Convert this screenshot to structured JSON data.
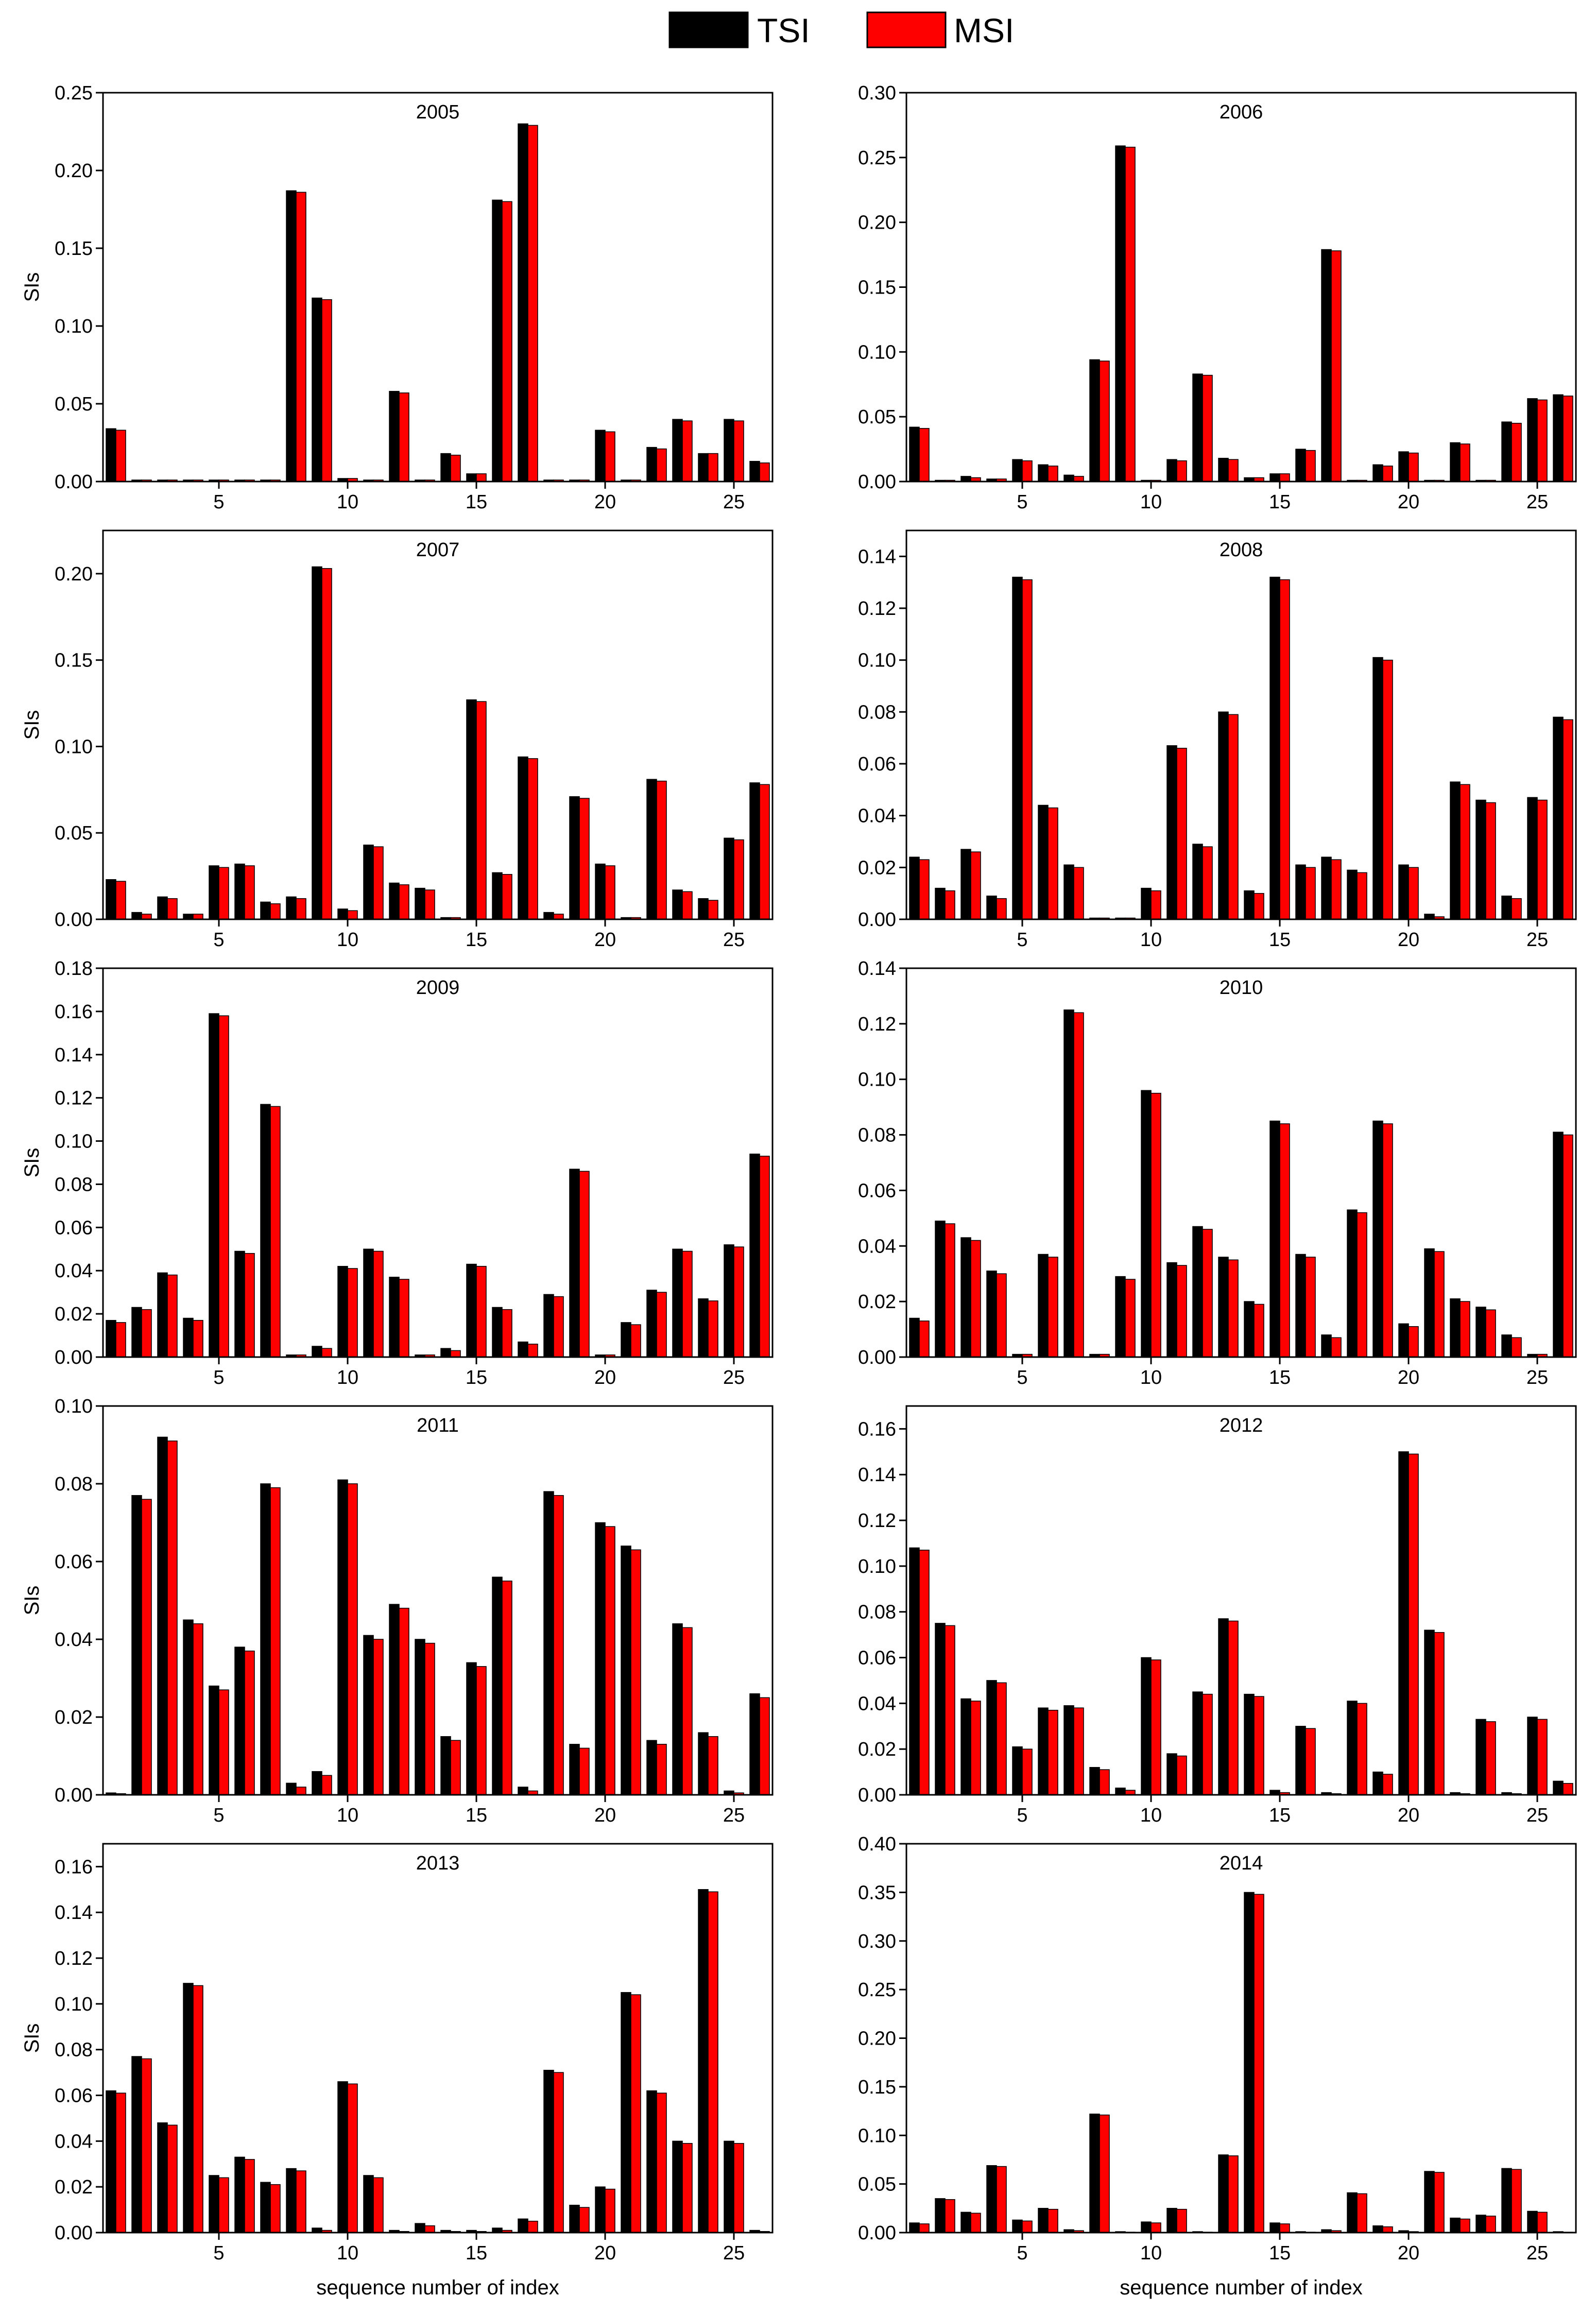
{
  "legend": [
    {
      "label": "TSI",
      "color": "#000000"
    },
    {
      "label": "MSI",
      "color": "#ff0000"
    }
  ],
  "x_tick_labels": [
    "5",
    "10",
    "15",
    "20",
    "25"
  ],
  "chart_data": [
    {
      "type": "bar",
      "title": "2005",
      "ylabel": "SIs",
      "xlabel": "",
      "ylim": [
        0,
        0.25
      ],
      "yticks": [
        "0.00",
        "0.05",
        "0.10",
        "0.15",
        "0.20",
        "0.25"
      ],
      "x": [
        1,
        2,
        3,
        4,
        5,
        6,
        7,
        8,
        9,
        10,
        11,
        12,
        13,
        14,
        15,
        16,
        17,
        18,
        19,
        20,
        21,
        22,
        23,
        24,
        25,
        26
      ],
      "series": [
        {
          "name": "TSI",
          "values": [
            0.034,
            0.001,
            0.001,
            0.001,
            0.001,
            0.001,
            0.001,
            0.187,
            0.118,
            0.002,
            0.001,
            0.058,
            0.001,
            0.018,
            0.005,
            0.181,
            0.23,
            0.001,
            0.001,
            0.033,
            0.001,
            0.022,
            0.04,
            0.018,
            0.04,
            0.013
          ]
        },
        {
          "name": "MSI",
          "values": [
            0.033,
            0.001,
            0.001,
            0.001,
            0.001,
            0.001,
            0.001,
            0.186,
            0.117,
            0.002,
            0.001,
            0.057,
            0.001,
            0.017,
            0.005,
            0.18,
            0.229,
            0.001,
            0.001,
            0.032,
            0.001,
            0.021,
            0.039,
            0.018,
            0.039,
            0.012
          ]
        }
      ]
    },
    {
      "type": "bar",
      "title": "2006",
      "ylabel": "",
      "xlabel": "",
      "ylim": [
        0,
        0.3
      ],
      "yticks": [
        "0.00",
        "0.05",
        "0.10",
        "0.15",
        "0.20",
        "0.25",
        "0.30"
      ],
      "x": [
        1,
        2,
        3,
        4,
        5,
        6,
        7,
        8,
        9,
        10,
        11,
        12,
        13,
        14,
        15,
        16,
        17,
        18,
        19,
        20,
        21,
        22,
        23,
        24,
        25,
        26
      ],
      "series": [
        {
          "name": "TSI",
          "values": [
            0.042,
            0.001,
            0.004,
            0.002,
            0.017,
            0.013,
            0.005,
            0.094,
            0.259,
            0.001,
            0.017,
            0.083,
            0.018,
            0.003,
            0.006,
            0.025,
            0.179,
            0.001,
            0.013,
            0.023,
            0.001,
            0.03,
            0.001,
            0.046,
            0.064,
            0.067
          ]
        },
        {
          "name": "MSI",
          "values": [
            0.041,
            0.001,
            0.003,
            0.002,
            0.016,
            0.012,
            0.004,
            0.093,
            0.258,
            0.001,
            0.016,
            0.082,
            0.017,
            0.003,
            0.006,
            0.024,
            0.178,
            0.001,
            0.012,
            0.022,
            0.001,
            0.029,
            0.001,
            0.045,
            0.063,
            0.066
          ]
        }
      ]
    },
    {
      "type": "bar",
      "title": "2007",
      "ylabel": "SIs",
      "xlabel": "",
      "ylim": [
        0,
        0.225
      ],
      "yticks": [
        "0.00",
        "0.05",
        "0.10",
        "0.15",
        "0.20"
      ],
      "x": [
        1,
        2,
        3,
        4,
        5,
        6,
        7,
        8,
        9,
        10,
        11,
        12,
        13,
        14,
        15,
        16,
        17,
        18,
        19,
        20,
        21,
        22,
        23,
        24,
        25,
        26
      ],
      "series": [
        {
          "name": "TSI",
          "values": [
            0.023,
            0.004,
            0.013,
            0.003,
            0.031,
            0.032,
            0.01,
            0.013,
            0.204,
            0.006,
            0.043,
            0.021,
            0.018,
            0.001,
            0.127,
            0.027,
            0.094,
            0.004,
            0.071,
            0.032,
            0.001,
            0.081,
            0.017,
            0.012,
            0.047,
            0.079
          ]
        },
        {
          "name": "MSI",
          "values": [
            0.022,
            0.003,
            0.012,
            0.003,
            0.03,
            0.031,
            0.009,
            0.012,
            0.203,
            0.005,
            0.042,
            0.02,
            0.017,
            0.001,
            0.126,
            0.026,
            0.093,
            0.003,
            0.07,
            0.031,
            0.001,
            0.08,
            0.016,
            0.011,
            0.046,
            0.078
          ]
        }
      ]
    },
    {
      "type": "bar",
      "title": "2008",
      "ylabel": "",
      "xlabel": "",
      "ylim": [
        0,
        0.15
      ],
      "yticks": [
        "0.00",
        "0.02",
        "0.04",
        "0.06",
        "0.08",
        "0.10",
        "0.12",
        "0.14"
      ],
      "x": [
        1,
        2,
        3,
        4,
        5,
        6,
        7,
        8,
        9,
        10,
        11,
        12,
        13,
        14,
        15,
        16,
        17,
        18,
        19,
        20,
        21,
        22,
        23,
        24,
        25,
        26
      ],
      "series": [
        {
          "name": "TSI",
          "values": [
            0.024,
            0.012,
            0.027,
            0.009,
            0.132,
            0.044,
            0.021,
            0.0005,
            0.0005,
            0.012,
            0.067,
            0.029,
            0.08,
            0.011,
            0.132,
            0.021,
            0.024,
            0.019,
            0.101,
            0.021,
            0.002,
            0.053,
            0.046,
            0.009,
            0.047,
            0.078
          ]
        },
        {
          "name": "MSI",
          "values": [
            0.023,
            0.011,
            0.026,
            0.008,
            0.131,
            0.043,
            0.02,
            0.0005,
            0.0005,
            0.011,
            0.066,
            0.028,
            0.079,
            0.01,
            0.131,
            0.02,
            0.023,
            0.018,
            0.1,
            0.02,
            0.001,
            0.052,
            0.045,
            0.008,
            0.046,
            0.077
          ]
        }
      ]
    },
    {
      "type": "bar",
      "title": "2009",
      "ylabel": "SIs",
      "xlabel": "",
      "ylim": [
        0,
        0.18
      ],
      "yticks": [
        "0.00",
        "0.02",
        "0.04",
        "0.06",
        "0.08",
        "0.10",
        "0.12",
        "0.14",
        "0.16",
        "0.18"
      ],
      "x": [
        1,
        2,
        3,
        4,
        5,
        6,
        7,
        8,
        9,
        10,
        11,
        12,
        13,
        14,
        15,
        16,
        17,
        18,
        19,
        20,
        21,
        22,
        23,
        24,
        25,
        26
      ],
      "series": [
        {
          "name": "TSI",
          "values": [
            0.017,
            0.023,
            0.039,
            0.018,
            0.159,
            0.049,
            0.117,
            0.001,
            0.005,
            0.042,
            0.05,
            0.037,
            0.001,
            0.004,
            0.043,
            0.023,
            0.007,
            0.029,
            0.087,
            0.001,
            0.016,
            0.031,
            0.05,
            0.027,
            0.052,
            0.094
          ]
        },
        {
          "name": "MSI",
          "values": [
            0.016,
            0.022,
            0.038,
            0.017,
            0.158,
            0.048,
            0.116,
            0.001,
            0.004,
            0.041,
            0.049,
            0.036,
            0.001,
            0.003,
            0.042,
            0.022,
            0.006,
            0.028,
            0.086,
            0.001,
            0.015,
            0.03,
            0.049,
            0.026,
            0.051,
            0.093
          ]
        }
      ]
    },
    {
      "type": "bar",
      "title": "2010",
      "ylabel": "",
      "xlabel": "",
      "ylim": [
        0,
        0.14
      ],
      "yticks": [
        "0.00",
        "0.02",
        "0.04",
        "0.06",
        "0.08",
        "0.10",
        "0.12",
        "0.14"
      ],
      "x": [
        1,
        2,
        3,
        4,
        5,
        6,
        7,
        8,
        9,
        10,
        11,
        12,
        13,
        14,
        15,
        16,
        17,
        18,
        19,
        20,
        21,
        22,
        23,
        24,
        25,
        26
      ],
      "series": [
        {
          "name": "TSI",
          "values": [
            0.014,
            0.049,
            0.043,
            0.031,
            0.001,
            0.037,
            0.125,
            0.001,
            0.029,
            0.096,
            0.034,
            0.047,
            0.036,
            0.02,
            0.085,
            0.037,
            0.008,
            0.053,
            0.085,
            0.012,
            0.039,
            0.021,
            0.018,
            0.008,
            0.001,
            0.081
          ]
        },
        {
          "name": "MSI",
          "values": [
            0.013,
            0.048,
            0.042,
            0.03,
            0.001,
            0.036,
            0.124,
            0.001,
            0.028,
            0.095,
            0.033,
            0.046,
            0.035,
            0.019,
            0.084,
            0.036,
            0.007,
            0.052,
            0.084,
            0.011,
            0.038,
            0.02,
            0.017,
            0.007,
            0.001,
            0.08
          ]
        }
      ]
    },
    {
      "type": "bar",
      "title": "2011",
      "ylabel": "SIs",
      "xlabel": "",
      "ylim": [
        0,
        0.1
      ],
      "yticks": [
        "0.00",
        "0.02",
        "0.04",
        "0.06",
        "0.08",
        "0.10"
      ],
      "x": [
        1,
        2,
        3,
        4,
        5,
        6,
        7,
        8,
        9,
        10,
        11,
        12,
        13,
        14,
        15,
        16,
        17,
        18,
        19,
        20,
        21,
        22,
        23,
        24,
        25,
        26
      ],
      "series": [
        {
          "name": "TSI",
          "values": [
            0.0005,
            0.077,
            0.092,
            0.045,
            0.028,
            0.038,
            0.08,
            0.003,
            0.006,
            0.081,
            0.041,
            0.049,
            0.04,
            0.015,
            0.034,
            0.056,
            0.002,
            0.078,
            0.013,
            0.07,
            0.064,
            0.014,
            0.044,
            0.016,
            0.001,
            0.026
          ]
        },
        {
          "name": "MSI",
          "values": [
            0.0003,
            0.076,
            0.091,
            0.044,
            0.027,
            0.037,
            0.079,
            0.002,
            0.005,
            0.08,
            0.04,
            0.048,
            0.039,
            0.014,
            0.033,
            0.055,
            0.001,
            0.077,
            0.012,
            0.069,
            0.063,
            0.013,
            0.043,
            0.015,
            0.0005,
            0.025
          ]
        }
      ]
    },
    {
      "type": "bar",
      "title": "2012",
      "ylabel": "",
      "xlabel": "",
      "ylim": [
        0,
        0.17
      ],
      "yticks": [
        "0.00",
        "0.02",
        "0.04",
        "0.06",
        "0.08",
        "0.10",
        "0.12",
        "0.14",
        "0.16"
      ],
      "x": [
        1,
        2,
        3,
        4,
        5,
        6,
        7,
        8,
        9,
        10,
        11,
        12,
        13,
        14,
        15,
        16,
        17,
        18,
        19,
        20,
        21,
        22,
        23,
        24,
        25,
        26
      ],
      "series": [
        {
          "name": "TSI",
          "values": [
            0.108,
            0.075,
            0.042,
            0.05,
            0.021,
            0.038,
            0.039,
            0.012,
            0.003,
            0.06,
            0.018,
            0.045,
            0.077,
            0.044,
            0.002,
            0.03,
            0.001,
            0.041,
            0.01,
            0.15,
            0.072,
            0.001,
            0.033,
            0.001,
            0.034,
            0.006
          ]
        },
        {
          "name": "MSI",
          "values": [
            0.107,
            0.074,
            0.041,
            0.049,
            0.02,
            0.037,
            0.038,
            0.011,
            0.002,
            0.059,
            0.017,
            0.044,
            0.076,
            0.043,
            0.001,
            0.029,
            0.0005,
            0.04,
            0.009,
            0.149,
            0.071,
            0.0005,
            0.032,
            0.0005,
            0.033,
            0.005
          ]
        }
      ]
    },
    {
      "type": "bar",
      "title": "2013",
      "ylabel": "SIs",
      "xlabel": "sequence number of index",
      "ylim": [
        0,
        0.17
      ],
      "yticks": [
        "0.00",
        "0.02",
        "0.04",
        "0.06",
        "0.08",
        "0.10",
        "0.12",
        "0.14",
        "0.16"
      ],
      "x": [
        1,
        2,
        3,
        4,
        5,
        6,
        7,
        8,
        9,
        10,
        11,
        12,
        13,
        14,
        15,
        16,
        17,
        18,
        19,
        20,
        21,
        22,
        23,
        24,
        25,
        26
      ],
      "series": [
        {
          "name": "TSI",
          "values": [
            0.062,
            0.077,
            0.048,
            0.109,
            0.025,
            0.033,
            0.022,
            0.028,
            0.002,
            0.066,
            0.025,
            0.001,
            0.004,
            0.001,
            0.001,
            0.002,
            0.006,
            0.071,
            0.012,
            0.02,
            0.105,
            0.062,
            0.04,
            0.15,
            0.04,
            0.001
          ]
        },
        {
          "name": "MSI",
          "values": [
            0.061,
            0.076,
            0.047,
            0.108,
            0.024,
            0.032,
            0.021,
            0.027,
            0.001,
            0.065,
            0.024,
            0.0005,
            0.003,
            0.0005,
            0.0005,
            0.001,
            0.005,
            0.07,
            0.011,
            0.019,
            0.104,
            0.061,
            0.039,
            0.149,
            0.039,
            0.0005
          ]
        }
      ]
    },
    {
      "type": "bar",
      "title": "2014",
      "ylabel": "",
      "xlabel": "sequence number of index",
      "ylim": [
        0,
        0.4
      ],
      "yticks": [
        "0.00",
        "0.05",
        "0.10",
        "0.15",
        "0.20",
        "0.25",
        "0.30",
        "0.35",
        "0.40"
      ],
      "x": [
        1,
        2,
        3,
        4,
        5,
        6,
        7,
        8,
        9,
        10,
        11,
        12,
        13,
        14,
        15,
        16,
        17,
        18,
        19,
        20,
        21,
        22,
        23,
        24,
        25,
        26
      ],
      "series": [
        {
          "name": "TSI",
          "values": [
            0.01,
            0.035,
            0.021,
            0.069,
            0.013,
            0.025,
            0.003,
            0.122,
            0.001,
            0.011,
            0.025,
            0.001,
            0.08,
            0.35,
            0.01,
            0.001,
            0.003,
            0.041,
            0.007,
            0.002,
            0.063,
            0.015,
            0.018,
            0.066,
            0.022,
            0.001
          ]
        },
        {
          "name": "MSI",
          "values": [
            0.009,
            0.034,
            0.02,
            0.068,
            0.012,
            0.024,
            0.002,
            0.121,
            0.0005,
            0.01,
            0.024,
            0.0005,
            0.079,
            0.348,
            0.009,
            0.0005,
            0.002,
            0.04,
            0.006,
            0.001,
            0.062,
            0.014,
            0.017,
            0.065,
            0.021,
            0.0005
          ]
        }
      ]
    }
  ]
}
